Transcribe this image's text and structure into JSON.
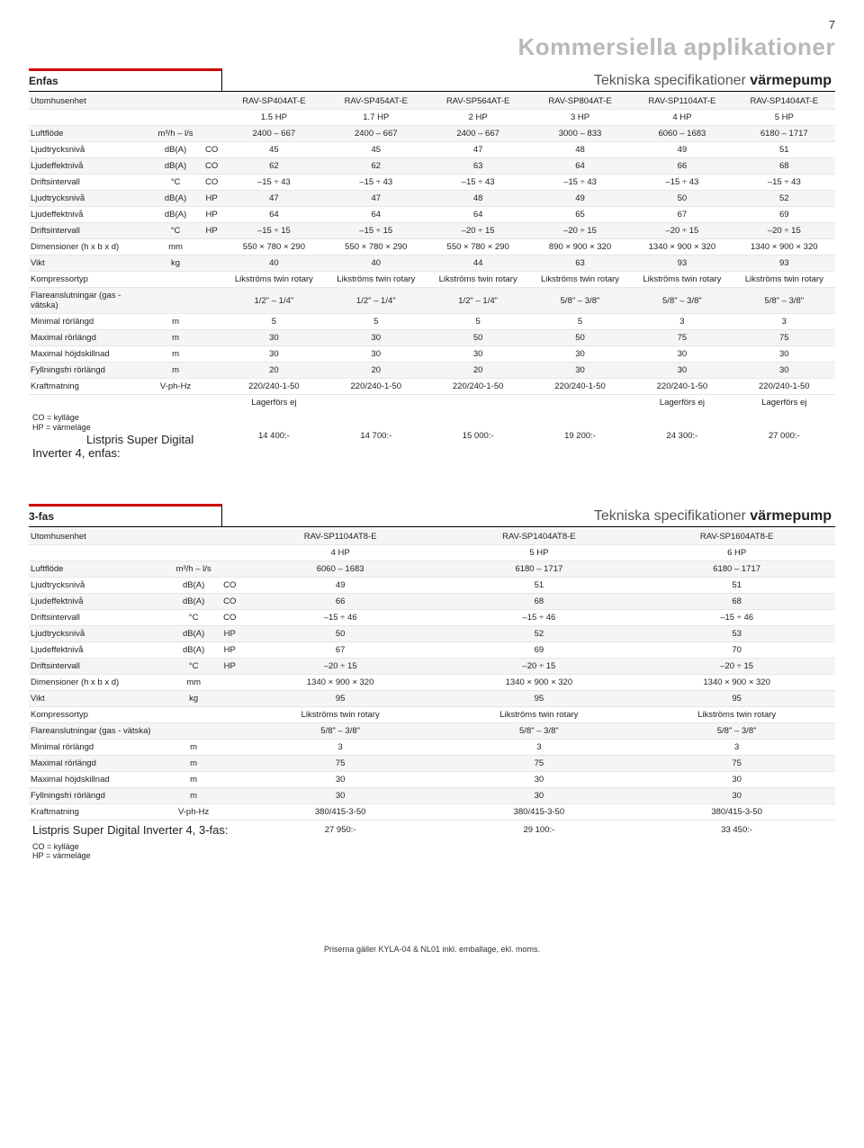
{
  "page_number": "7",
  "page_title": "Kommersiella applikationer",
  "legend_co": "CO = kylläge",
  "legend_hp": "HP = värmeläge",
  "footer": "Priserna gäller KYLA-04 & NL01 inkl. emballage, ekl. moms.",
  "table1": {
    "phase": "Enfas",
    "spec_title_prefix": "Tekniska specifikationer ",
    "spec_title_bold": "värmepump",
    "col_widths": [
      "135",
      "55",
      "25",
      "113",
      "113",
      "113",
      "113",
      "113",
      "113"
    ],
    "head_label": "Utomhusenhet",
    "models": [
      "RAV-SP404AT-E",
      "RAV-SP454AT-E",
      "RAV-SP564AT-E",
      "RAV-SP804AT-E",
      "RAV-SP1104AT-E",
      "RAV-SP1404AT-E"
    ],
    "hp_row": [
      "1.5 HP",
      "1.7 HP",
      "2 HP",
      "3 HP",
      "4 HP",
      "5 HP"
    ],
    "rows": [
      {
        "label": "Luftflöde",
        "unit": "m³/h – l/s",
        "mode": "",
        "v": [
          "2400 – 667",
          "2400 – 667",
          "2400 – 667",
          "3000 – 833",
          "6060 – 1683",
          "6180 – 1717"
        ]
      },
      {
        "label": "Ljudtrycksnivå",
        "unit": "dB(A)",
        "mode": "CO",
        "v": [
          "45",
          "45",
          "47",
          "48",
          "49",
          "51"
        ]
      },
      {
        "label": "Ljudeffektnivå",
        "unit": "dB(A)",
        "mode": "CO",
        "v": [
          "62",
          "62",
          "63",
          "64",
          "66",
          "68"
        ]
      },
      {
        "label": "Driftsintervall",
        "unit": "°C",
        "mode": "CO",
        "v": [
          "–15 ÷ 43",
          "–15 ÷ 43",
          "–15 ÷ 43",
          "–15 ÷ 43",
          "–15 ÷ 43",
          "–15 ÷ 43"
        ]
      },
      {
        "label": "Ljudtrycksnivå",
        "unit": "dB(A)",
        "mode": "HP",
        "v": [
          "47",
          "47",
          "48",
          "49",
          "50",
          "52"
        ]
      },
      {
        "label": "Ljudeffektnivå",
        "unit": "dB(A)",
        "mode": "HP",
        "v": [
          "64",
          "64",
          "64",
          "65",
          "67",
          "69"
        ]
      },
      {
        "label": "Driftsintervall",
        "unit": "°C",
        "mode": "HP",
        "v": [
          "–15 ÷ 15",
          "–15 ÷ 15",
          "–20 ÷ 15",
          "–20 ÷ 15",
          "–20 ÷ 15",
          "–20 ÷ 15"
        ]
      },
      {
        "label": "Dimensioner (h x b x d)",
        "unit": "mm",
        "mode": "",
        "v": [
          "550 × 780 × 290",
          "550 × 780 × 290",
          "550 × 780 × 290",
          "890 × 900 × 320",
          "1340 × 900 × 320",
          "1340 × 900 × 320"
        ]
      },
      {
        "label": "Vikt",
        "unit": "kg",
        "mode": "",
        "v": [
          "40",
          "40",
          "44",
          "63",
          "93",
          "93"
        ]
      },
      {
        "label": "Kompressortyp",
        "unit": "",
        "mode": "",
        "v": [
          "Likströms twin rotary",
          "Likströms twin rotary",
          "Likströms twin rotary",
          "Likströms twin rotary",
          "Likströms twin rotary",
          "Likströms twin rotary"
        ]
      },
      {
        "label": "Flareanslutningar (gas - vätska)",
        "unit": "",
        "mode": "",
        "v": [
          "1/2\" – 1/4\"",
          "1/2\" – 1/4\"",
          "1/2\" – 1/4\"",
          "5/8\" – 3/8\"",
          "5/8\" – 3/8\"",
          "5/8\" – 3/8\""
        ]
      },
      {
        "label": "Minimal rörlängd",
        "unit": "m",
        "mode": "",
        "v": [
          "5",
          "5",
          "5",
          "5",
          "3",
          "3"
        ]
      },
      {
        "label": "Maximal rörlängd",
        "unit": "m",
        "mode": "",
        "v": [
          "30",
          "30",
          "50",
          "50",
          "75",
          "75"
        ]
      },
      {
        "label": "Maximal höjdskillnad",
        "unit": "m",
        "mode": "",
        "v": [
          "30",
          "30",
          "30",
          "30",
          "30",
          "30"
        ]
      },
      {
        "label": "Fyllningsfri rörlängd",
        "unit": "m",
        "mode": "",
        "v": [
          "20",
          "20",
          "20",
          "30",
          "30",
          "30"
        ]
      },
      {
        "label": "Kraftmatning",
        "unit": "V-ph-Hz",
        "mode": "",
        "v": [
          "220/240-1-50",
          "220/240-1-50",
          "220/240-1-50",
          "220/240-1-50",
          "220/240-1-50",
          "220/240-1-50"
        ]
      }
    ],
    "stock": [
      "Lagerförs ej",
      "",
      "",
      "",
      "Lagerförs ej",
      "Lagerförs ej"
    ],
    "listprice_label": "Listpris Super Digital Inverter 4, enfas:",
    "prices": [
      "14 400:-",
      "14 700:-",
      "15 000:-",
      "19 200:-",
      "24 300:-",
      "27 000:-"
    ]
  },
  "table2": {
    "phase": "3-fas",
    "spec_title_prefix": "Tekniska specifikationer ",
    "spec_title_bold": "värmepump",
    "col_widths": [
      "155",
      "55",
      "25",
      "220",
      "220",
      "218"
    ],
    "head_label": "Utomhusenhet",
    "models": [
      "RAV-SP1104AT8-E",
      "RAV-SP1404AT8-E",
      "RAV-SP1604AT8-E"
    ],
    "hp_row": [
      "4 HP",
      "5 HP",
      "6 HP"
    ],
    "rows": [
      {
        "label": "Luftflöde",
        "unit": "m³/h – l/s",
        "mode": "",
        "v": [
          "6060 – 1683",
          "6180 – 1717",
          "6180 – 1717"
        ]
      },
      {
        "label": "Ljudtrycksnivå",
        "unit": "dB(A)",
        "mode": "CO",
        "v": [
          "49",
          "51",
          "51"
        ]
      },
      {
        "label": "Ljudeffektnivå",
        "unit": "dB(A)",
        "mode": "CO",
        "v": [
          "66",
          "68",
          "68"
        ]
      },
      {
        "label": "Driftsintervall",
        "unit": "°C",
        "mode": "CO",
        "v": [
          "–15 ÷ 46",
          "–15 ÷ 46",
          "–15 ÷ 46"
        ]
      },
      {
        "label": "Ljudtrycksnivå",
        "unit": "dB(A)",
        "mode": "HP",
        "v": [
          "50",
          "52",
          "53"
        ]
      },
      {
        "label": "Ljudeffektnivå",
        "unit": "dB(A)",
        "mode": "HP",
        "v": [
          "67",
          "69",
          "70"
        ]
      },
      {
        "label": "Driftsintervall",
        "unit": "°C",
        "mode": "HP",
        "v": [
          "–20 ÷ 15",
          "–20 ÷ 15",
          "–20 ÷ 15"
        ]
      },
      {
        "label": "Dimensioner (h x b x d)",
        "unit": "mm",
        "mode": "",
        "v": [
          "1340 × 900 × 320",
          "1340 × 900 × 320",
          "1340 × 900 × 320"
        ]
      },
      {
        "label": "Vikt",
        "unit": "kg",
        "mode": "",
        "v": [
          "95",
          "95",
          "95"
        ]
      },
      {
        "label": "Kompressortyp",
        "unit": "",
        "mode": "",
        "v": [
          "Likströms twin rotary",
          "Likströms twin rotary",
          "Likströms twin rotary"
        ]
      },
      {
        "label": "Flareanslutningar (gas - vätska)",
        "unit": "",
        "mode": "",
        "v": [
          "5/8\" – 3/8\"",
          "5/8\" – 3/8\"",
          "5/8\" – 3/8\""
        ]
      },
      {
        "label": "Minimal rörlängd",
        "unit": "m",
        "mode": "",
        "v": [
          "3",
          "3",
          "3"
        ]
      },
      {
        "label": "Maximal rörlängd",
        "unit": "m",
        "mode": "",
        "v": [
          "75",
          "75",
          "75"
        ]
      },
      {
        "label": "Maximal höjdskillnad",
        "unit": "m",
        "mode": "",
        "v": [
          "30",
          "30",
          "30"
        ]
      },
      {
        "label": "Fyllningsfri rörlängd",
        "unit": "m",
        "mode": "",
        "v": [
          "30",
          "30",
          "30"
        ]
      },
      {
        "label": "Kraftmatning",
        "unit": "V-ph-Hz",
        "mode": "",
        "v": [
          "380/415-3-50",
          "380/415-3-50",
          "380/415-3-50"
        ]
      }
    ],
    "listprice_label": "Listpris Super Digital Inverter 4, 3-fas:",
    "prices": [
      "27 950:-",
      "29 100:-",
      "33 450:-"
    ]
  }
}
